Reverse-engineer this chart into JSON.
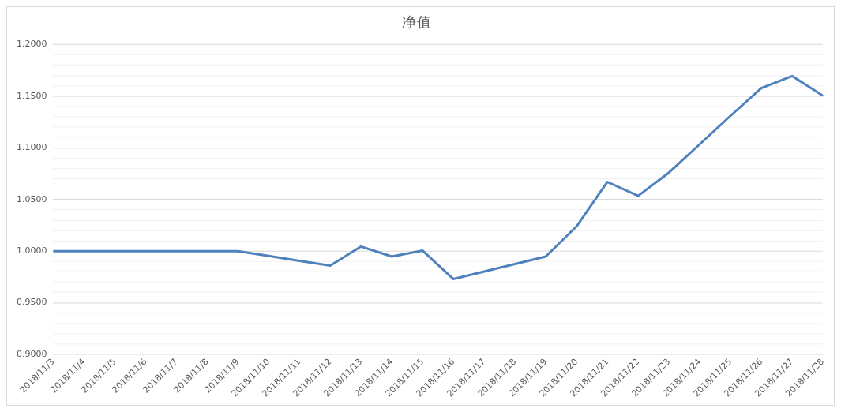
{
  "chart_data": {
    "type": "line",
    "title": "净值",
    "categories": [
      "2018/11/3",
      "2018/11/4",
      "2018/11/5",
      "2018/11/6",
      "2018/11/7",
      "2018/11/8",
      "2018/11/9",
      "2018/11/10",
      "2018/11/11",
      "2018/11/12",
      "2018/11/13",
      "2018/11/14",
      "2018/11/15",
      "2018/11/16",
      "2018/11/17",
      "2018/11/18",
      "2018/11/19",
      "2018/11/20",
      "2018/11/21",
      "2018/11/22",
      "2018/11/23",
      "2018/11/24",
      "2018/11/25",
      "2018/11/26",
      "2018/11/27",
      "2018/11/28"
    ],
    "series": [
      {
        "color": "#4f81bd",
        "values": [
          1.0,
          1.0,
          1.0,
          1.0,
          1.0,
          1.0,
          1.0,
          0.9953,
          0.9906,
          0.986,
          1.0045,
          0.9948,
          1.0005,
          0.973,
          0.9803,
          0.9876,
          0.9948,
          1.024,
          1.067,
          1.0535,
          1.076,
          1.1035,
          1.131,
          1.1578,
          1.1695,
          1.1505
        ]
      }
    ],
    "ylim": [
      0.9,
      1.2
    ],
    "yticks": [
      {
        "value": 0.9,
        "label": "0.9000"
      },
      {
        "value": 0.91,
        "label": null
      },
      {
        "value": 0.92,
        "label": null
      },
      {
        "value": 0.93,
        "label": null
      },
      {
        "value": 0.94,
        "label": null
      },
      {
        "value": 0.95,
        "label": "0.9500"
      },
      {
        "value": 0.96,
        "label": null
      },
      {
        "value": 0.97,
        "label": null
      },
      {
        "value": 0.98,
        "label": null
      },
      {
        "value": 0.99,
        "label": null
      },
      {
        "value": 1.0,
        "label": "1.0000"
      },
      {
        "value": 1.01,
        "label": null
      },
      {
        "value": 1.02,
        "label": null
      },
      {
        "value": 1.03,
        "label": null
      },
      {
        "value": 1.04,
        "label": null
      },
      {
        "value": 1.05,
        "label": "1.0500"
      },
      {
        "value": 1.06,
        "label": null
      },
      {
        "value": 1.07,
        "label": null
      },
      {
        "value": 1.08,
        "label": null
      },
      {
        "value": 1.09,
        "label": null
      },
      {
        "value": 1.1,
        "label": "1.1000"
      },
      {
        "value": 1.11,
        "label": null
      },
      {
        "value": 1.12,
        "label": null
      },
      {
        "value": 1.13,
        "label": null
      },
      {
        "value": 1.14,
        "label": null
      },
      {
        "value": 1.15,
        "label": "1.1500"
      },
      {
        "value": 1.16,
        "label": null
      },
      {
        "value": 1.17,
        "label": null
      },
      {
        "value": 1.18,
        "label": null
      },
      {
        "value": 1.19,
        "label": null
      },
      {
        "value": 1.2,
        "label": "1.2000"
      }
    ],
    "grid": "y",
    "legend": false,
    "marker": "none",
    "line_style": "solid"
  }
}
